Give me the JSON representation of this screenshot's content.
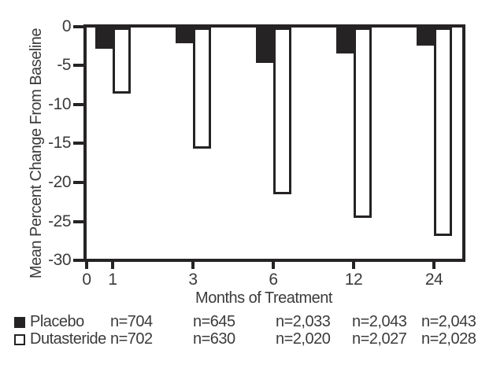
{
  "chart_data": {
    "type": "bar",
    "title": "",
    "categories": [
      "1",
      "3",
      "6",
      "12",
      "24"
    ],
    "series": [
      {
        "name": "Placebo",
        "style": "filled-black",
        "values": [
          -2.8,
          -2.1,
          -4.6,
          -3.4,
          -2.4
        ]
      },
      {
        "name": "Dutasteride",
        "style": "white-outlined",
        "values": [
          -8.6,
          -15.6,
          -21.4,
          -24.5,
          -26.8
        ]
      }
    ],
    "xlabel": "Months of Treatment",
    "ylabel": "Mean Percent Change From Baseline",
    "x_origin_label": "0",
    "yticks": [
      0,
      -5,
      -10,
      -15,
      -20,
      -25,
      -30
    ],
    "ylim": [
      -30,
      0
    ],
    "grid": false,
    "legend_position": "bottom-left",
    "ink_color": "#262324",
    "legend": {
      "rows": [
        {
          "marker": "filled-square",
          "label": "Placebo",
          "counts": [
            "n=704",
            "n=645",
            "n=2,033",
            "n=2,043",
            "n=2,043"
          ]
        },
        {
          "marker": "open-square",
          "label": "Dutasteride",
          "counts": [
            "n=702",
            "n=630",
            "n=2,020",
            "n=2,027",
            "n=2,028"
          ]
        }
      ]
    }
  }
}
